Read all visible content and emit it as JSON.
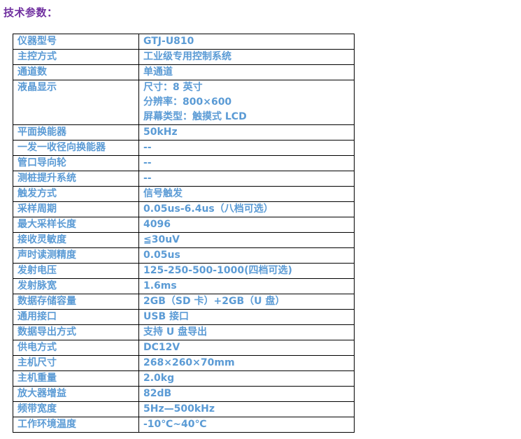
{
  "page": {
    "title": "技术参数："
  },
  "colors": {
    "title_text": "#7030A0",
    "table_text": "#5B9BD5",
    "table_border": "#000000",
    "background": "#FFFFFF"
  },
  "table": {
    "rows": [
      {
        "label": "仪器型号",
        "value": "GTJ-U810"
      },
      {
        "label": "主控方式",
        "value": "工业级专用控制系统"
      },
      {
        "label": "通道数",
        "value": "单通道"
      },
      {
        "label": "液晶显示",
        "value": "尺寸：8 英寸\n分辨率：800×600\n屏幕类型：触摸式 LCD"
      },
      {
        "label": "平面换能器",
        "value": "50kHz"
      },
      {
        "label": "一发一收径向换能器",
        "value": "--"
      },
      {
        "label": "管口导向轮",
        "value": "--"
      },
      {
        "label": "测桩提升系统",
        "value": "--"
      },
      {
        "label": "触发方式",
        "value": "信号触发"
      },
      {
        "label": "采样周期",
        "value": "0.05us-6.4us（八档可选）"
      },
      {
        "label": "最大采样长度",
        "value": "4096"
      },
      {
        "label": "接收灵敏度",
        "value": "≦30uV"
      },
      {
        "label": "声时读测精度",
        "value": "0.05us"
      },
      {
        "label": "发射电压",
        "value": "125-250-500-1000(四档可选)"
      },
      {
        "label": "发射脉宽",
        "value": "1.6ms"
      },
      {
        "label": "数据存储容量",
        "value": "2GB（SD 卡）+2GB（U 盘）"
      },
      {
        "label": "通用接口",
        "value": "USB 接口"
      },
      {
        "label": "数据导出方式",
        "value": "支持 U 盘导出"
      },
      {
        "label": "供电方式",
        "value": "DC12V"
      },
      {
        "label": "主机尺寸",
        "value": "268×260×70mm"
      },
      {
        "label": "主机重量",
        "value": "2.0kg"
      },
      {
        "label": "放大器增益",
        "value": "82dB"
      },
      {
        "label": "频带宽度",
        "value": "5Hz—500kHz"
      },
      {
        "label": "工作环境温度",
        "value": "-10℃~40℃"
      }
    ]
  }
}
